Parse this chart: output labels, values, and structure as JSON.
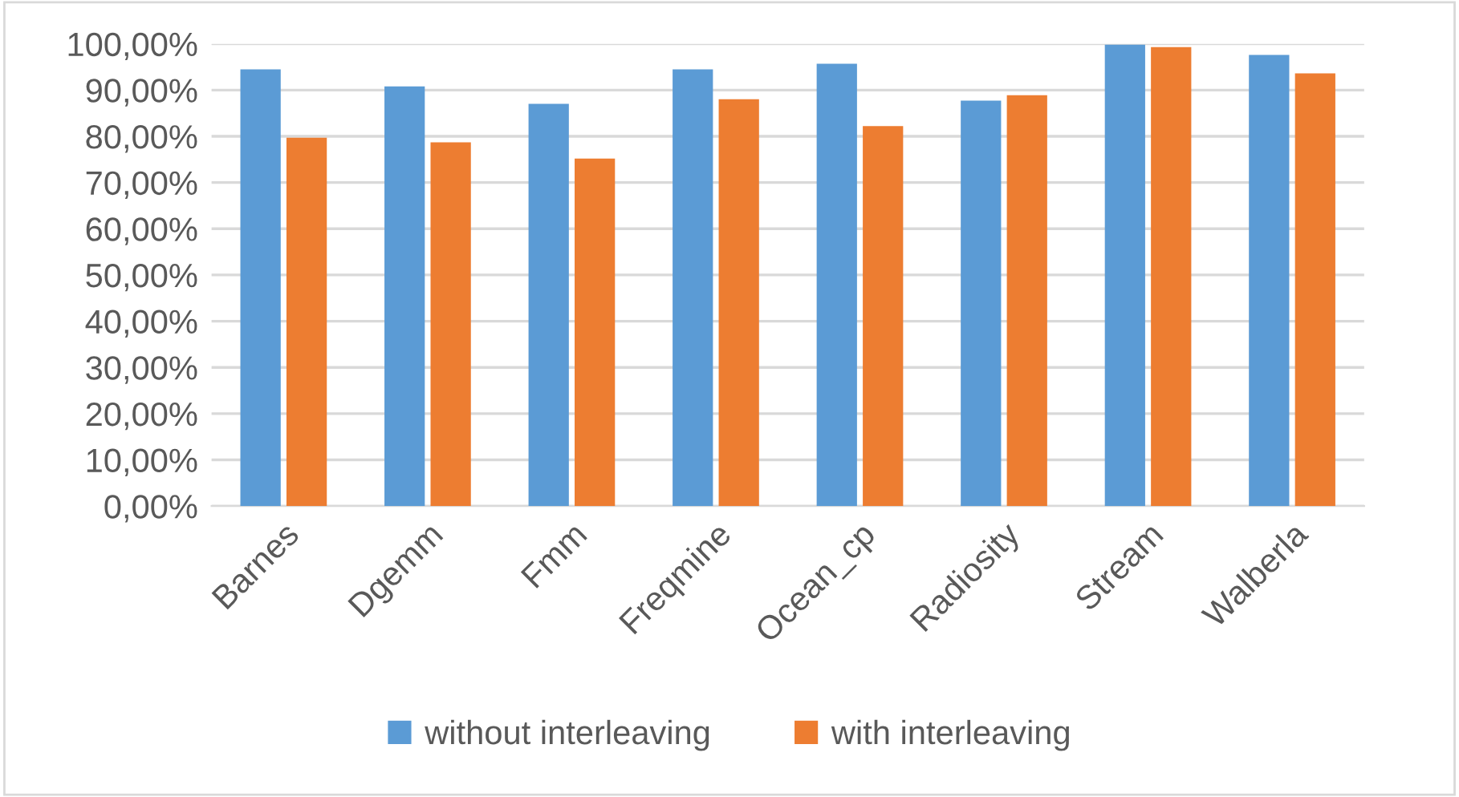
{
  "chart_data": {
    "type": "bar",
    "categories": [
      "Barnes",
      "Dgemm",
      "Fmm",
      "Freqmine",
      "Ocean_cp",
      "Radiosity",
      "Stream",
      "Walberla"
    ],
    "series": [
      {
        "name": "without interleaving",
        "color": "#5b9bd5",
        "values": [
          94.5,
          90.8,
          87.0,
          94.5,
          95.7,
          87.7,
          99.8,
          97.6
        ]
      },
      {
        "name": "with interleaving",
        "color": "#ed7d31",
        "values": [
          79.7,
          78.7,
          75.2,
          88.0,
          82.2,
          88.9,
          99.3,
          93.6
        ]
      }
    ],
    "ylim": [
      0,
      100
    ],
    "yticks": [
      {
        "value": 0,
        "label": "0,00%"
      },
      {
        "value": 10,
        "label": "10,00%"
      },
      {
        "value": 20,
        "label": "20,00%"
      },
      {
        "value": 30,
        "label": "30,00%"
      },
      {
        "value": 40,
        "label": "40,00%"
      },
      {
        "value": 50,
        "label": "50,00%"
      },
      {
        "value": 60,
        "label": "60,00%"
      },
      {
        "value": 70,
        "label": "70,00%"
      },
      {
        "value": 80,
        "label": "80,00%"
      },
      {
        "value": 90,
        "label": "90,00%"
      },
      {
        "value": 100,
        "label": "100,00%"
      }
    ],
    "grid": "y",
    "legend": "bottom"
  }
}
